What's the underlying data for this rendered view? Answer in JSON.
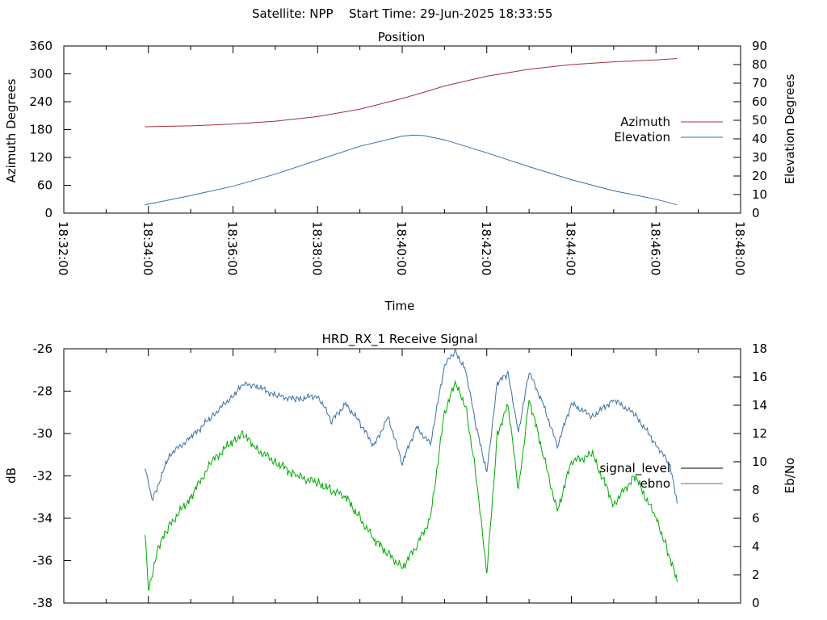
{
  "header": {
    "satellite": "Satellite: NPP",
    "start_time": "Start Time: 29-Jun-2025 18:33:55"
  },
  "colors": {
    "azimuth": "#a0303a",
    "elevation": "#3a6fa8",
    "signal_level": "#3a6fa8",
    "ebno": "#00aa00",
    "legend_signal_level": "#000000",
    "legend_ebno": "#3a6fa8"
  },
  "chart_data": [
    {
      "type": "line",
      "title": "Position",
      "xlabel": "Time",
      "ylabel": "Azimuth Degrees",
      "y2label": "Elevation Degrees",
      "xlim": [
        "18:32:00",
        "18:48:00"
      ],
      "xticks": [
        "18:32:00",
        "18:34:00",
        "18:36:00",
        "18:38:00",
        "18:40:00",
        "18:42:00",
        "18:44:00",
        "18:46:00",
        "18:48:00"
      ],
      "ylim": [
        0,
        360
      ],
      "yticks": [
        0,
        60,
        120,
        180,
        240,
        300,
        360
      ],
      "y2lim": [
        0,
        90
      ],
      "y2ticks": [
        0,
        10,
        20,
        30,
        40,
        50,
        60,
        70,
        80,
        90
      ],
      "legend_position": "right",
      "series": [
        {
          "name": "Azimuth",
          "axis": "y",
          "color_key": "azimuth",
          "x": [
            "18:33:55",
            "18:35:00",
            "18:36:00",
            "18:37:00",
            "18:38:00",
            "18:39:00",
            "18:40:00",
            "18:40:30",
            "18:41:00",
            "18:42:00",
            "18:43:00",
            "18:44:00",
            "18:45:00",
            "18:46:00",
            "18:46:30"
          ],
          "values": [
            186,
            188,
            192,
            198,
            208,
            224,
            247,
            260,
            274,
            295,
            310,
            320,
            326,
            330,
            333
          ]
        },
        {
          "name": "Elevation",
          "axis": "y2",
          "color_key": "elevation",
          "x": [
            "18:33:55",
            "18:35:00",
            "18:36:00",
            "18:37:00",
            "18:38:00",
            "18:39:00",
            "18:40:00",
            "18:40:15",
            "18:40:30",
            "18:41:00",
            "18:42:00",
            "18:43:00",
            "18:44:00",
            "18:45:00",
            "18:46:00",
            "18:46:30"
          ],
          "values": [
            4.5,
            9.5,
            14.5,
            21,
            28.5,
            36,
            41.5,
            42,
            41.8,
            39.5,
            32.5,
            25,
            18,
            12,
            7.5,
            4.5
          ]
        }
      ]
    },
    {
      "type": "line",
      "title": "HRD_RX_1 Receive Signal",
      "xlabel": "",
      "ylabel": "dB",
      "y2label": "Eb/No",
      "xlim": [
        "18:32:00",
        "18:48:00"
      ],
      "ylim": [
        -38,
        -26
      ],
      "yticks": [
        -38,
        -36,
        -34,
        -32,
        -30,
        -28,
        -26
      ],
      "y2lim": [
        0,
        18
      ],
      "y2ticks": [
        0,
        2,
        4,
        6,
        8,
        10,
        12,
        14,
        16,
        18
      ],
      "legend_position": "right",
      "series": [
        {
          "name": "signal_level",
          "axis": "y",
          "color_key": "signal_level",
          "legend_color_key": "legend_signal_level",
          "x": [
            "18:33:55",
            "18:34:05",
            "18:34:30",
            "18:35:00",
            "18:35:30",
            "18:36:00",
            "18:36:15",
            "18:36:30",
            "18:37:00",
            "18:37:30",
            "18:38:00",
            "18:38:20",
            "18:38:40",
            "18:39:00",
            "18:39:20",
            "18:39:40",
            "18:40:00",
            "18:40:20",
            "18:40:40",
            "18:41:00",
            "18:41:15",
            "18:41:30",
            "18:41:45",
            "18:42:00",
            "18:42:15",
            "18:42:30",
            "18:42:45",
            "18:43:00",
            "18:43:20",
            "18:43:40",
            "18:44:00",
            "18:44:30",
            "18:45:00",
            "18:45:30",
            "18:46:00",
            "18:46:20",
            "18:46:30"
          ],
          "values": [
            -31.5,
            -33.2,
            -31.0,
            -30.2,
            -29.2,
            -28.2,
            -27.7,
            -27.7,
            -28.2,
            -28.4,
            -28.2,
            -29.4,
            -28.6,
            -29.5,
            -30.6,
            -29.2,
            -31.4,
            -29.7,
            -30.5,
            -26.8,
            -26.1,
            -27.0,
            -29.7,
            -31.8,
            -27.6,
            -27.2,
            -29.9,
            -27.1,
            -28.6,
            -30.6,
            -28.6,
            -29.2,
            -28.4,
            -29.1,
            -30.5,
            -31.5,
            -33.3
          ]
        },
        {
          "name": "ebno",
          "axis": "y2",
          "color_key": "ebno",
          "legend_color_key": "legend_ebno",
          "x": [
            "18:33:55",
            "18:34:00",
            "18:34:15",
            "18:34:30",
            "18:35:00",
            "18:35:30",
            "18:36:00",
            "18:36:15",
            "18:36:30",
            "18:37:00",
            "18:37:30",
            "18:38:00",
            "18:38:20",
            "18:38:40",
            "18:39:00",
            "18:39:20",
            "18:39:40",
            "18:40:00",
            "18:40:20",
            "18:40:40",
            "18:41:00",
            "18:41:15",
            "18:41:30",
            "18:41:45",
            "18:42:00",
            "18:42:15",
            "18:42:30",
            "18:42:45",
            "18:43:00",
            "18:43:20",
            "18:43:40",
            "18:44:00",
            "18:44:30",
            "18:45:00",
            "18:45:30",
            "18:46:00",
            "18:46:15",
            "18:46:30"
          ],
          "values": [
            5.0,
            1.0,
            4.0,
            5.5,
            7.5,
            10.0,
            11.5,
            12.0,
            11.0,
            10.0,
            9.0,
            8.5,
            8.0,
            7.5,
            6.0,
            4.5,
            3.5,
            2.5,
            4.0,
            6.0,
            13.5,
            15.5,
            14.0,
            9.0,
            2.0,
            12.0,
            14.0,
            8.0,
            14.5,
            10.5,
            6.5,
            10.0,
            10.5,
            7.0,
            9.0,
            6.0,
            4.0,
            1.5
          ]
        }
      ]
    }
  ]
}
